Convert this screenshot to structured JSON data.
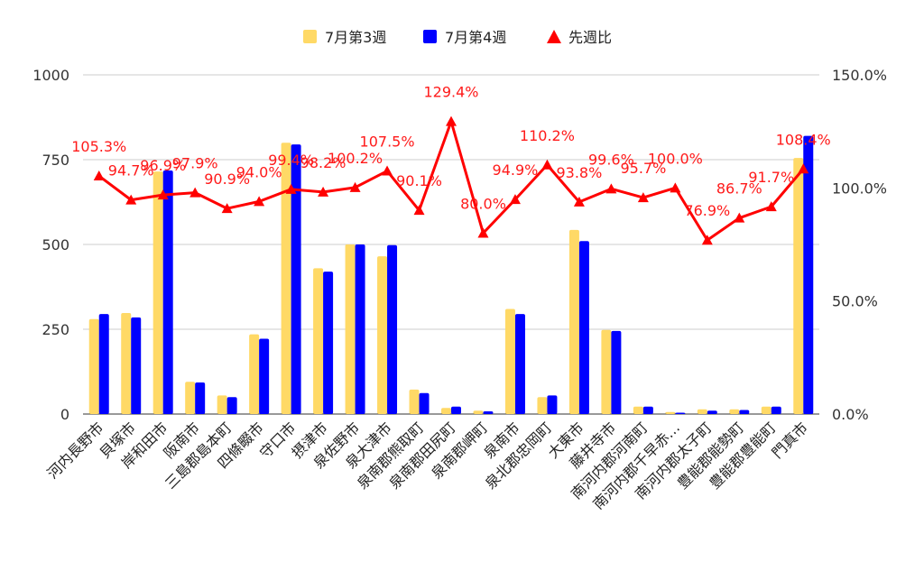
{
  "chart_data": {
    "type": "bar",
    "title": "",
    "legend_position": "top",
    "grid": true,
    "y_left": {
      "lim": [
        0,
        1000
      ],
      "ticks": [
        "0",
        "250",
        "500",
        "750",
        "1000"
      ]
    },
    "y_right": {
      "lim": [
        0,
        150
      ],
      "ticks": [
        "0.0%",
        "50.0%",
        "100.0%",
        "150.0%"
      ]
    },
    "categories": [
      "河内長野市",
      "貝塚市",
      "岸和田市",
      "阪南市",
      "三島郡島本町",
      "四條畷市",
      "守口市",
      "摂津市",
      "泉佐野市",
      "泉大津市",
      "泉南郡熊取町",
      "泉南郡田尻町",
      "泉南郡岬町",
      "泉南市",
      "泉北郡忠岡町",
      "大東市",
      "藤井寺市",
      "南河内郡河南町",
      "南河内郡千早赤…",
      "南河内郡太子町",
      "豊能郡能勢町",
      "豊能郡豊能町",
      "門真市"
    ],
    "series": [
      {
        "name": "7月第3週",
        "type": "bar",
        "axis": "left",
        "color": "#ffd966",
        "values": [
          280,
          298,
          715,
          95,
          55,
          235,
          800,
          430,
          500,
          465,
          72,
          18,
          10,
          310,
          50,
          543,
          248,
          22,
          6,
          14,
          14,
          22,
          755
        ]
      },
      {
        "name": "7月第4週",
        "type": "bar",
        "axis": "left",
        "color": "#0000ff",
        "values": [
          295,
          285,
          718,
          93,
          50,
          222,
          795,
          420,
          500,
          498,
          62,
          22,
          8,
          295,
          55,
          510,
          245,
          22,
          4,
          10,
          12,
          22,
          820
        ]
      },
      {
        "name": "先週比",
        "type": "line",
        "axis": "right",
        "color": "#ff0000",
        "values": [
          105.3,
          94.7,
          96.9,
          97.9,
          90.9,
          94.0,
          99.4,
          98.2,
          100.2,
          107.5,
          90.1,
          129.4,
          80.0,
          94.9,
          110.2,
          93.8,
          99.6,
          95.7,
          100.0,
          76.9,
          86.7,
          91.7,
          108.4
        ],
        "labels": [
          "105.3%",
          "94.7%",
          "96.9%",
          "97.9%",
          "90.9%",
          "94.0%",
          "99.4%",
          "98.2%",
          "100.2%",
          "107.5%",
          "90.1%",
          "129.4%",
          "80.0%",
          "94.9%",
          "110.2%",
          "93.8%",
          "99.6%",
          "95.7%",
          "100.0%",
          "76.9%",
          "86.7%",
          "91.7%",
          "108.4%"
        ]
      }
    ]
  }
}
